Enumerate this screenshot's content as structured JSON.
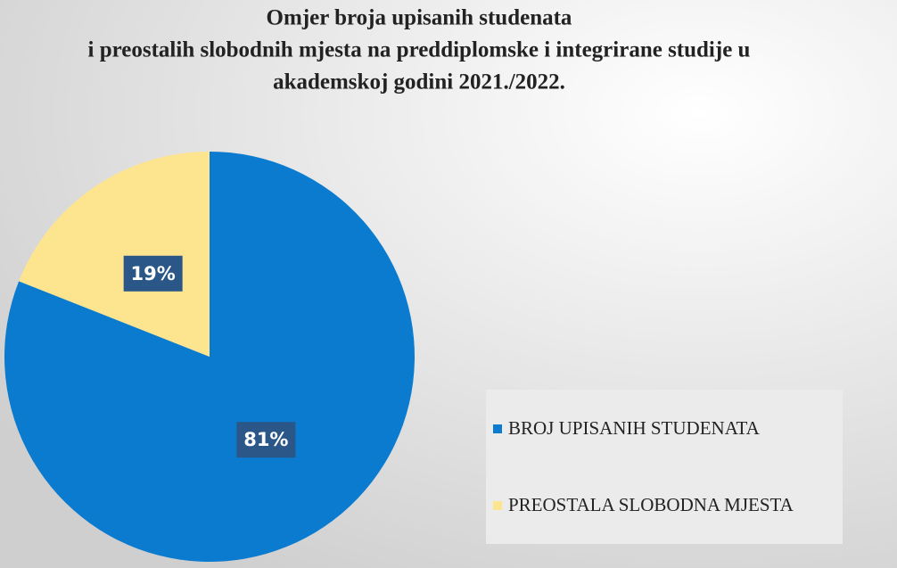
{
  "chart_data": {
    "type": "pie",
    "title": [
      "Omjer broja upisanih studenata",
      "i preostalih slobodnih mjesta na preddiplomske i integrirane studije u",
      "akademskoj godini 2021./2022."
    ],
    "categories": [
      "BROJ UPISANIH STUDENATA",
      "PREOSTALA SLOBODNA MJESTA"
    ],
    "values": [
      81,
      19
    ],
    "value_labels": [
      "81%",
      "19%"
    ],
    "colors": [
      "#0b7bd0",
      "#fde590"
    ],
    "legend": "right"
  }
}
